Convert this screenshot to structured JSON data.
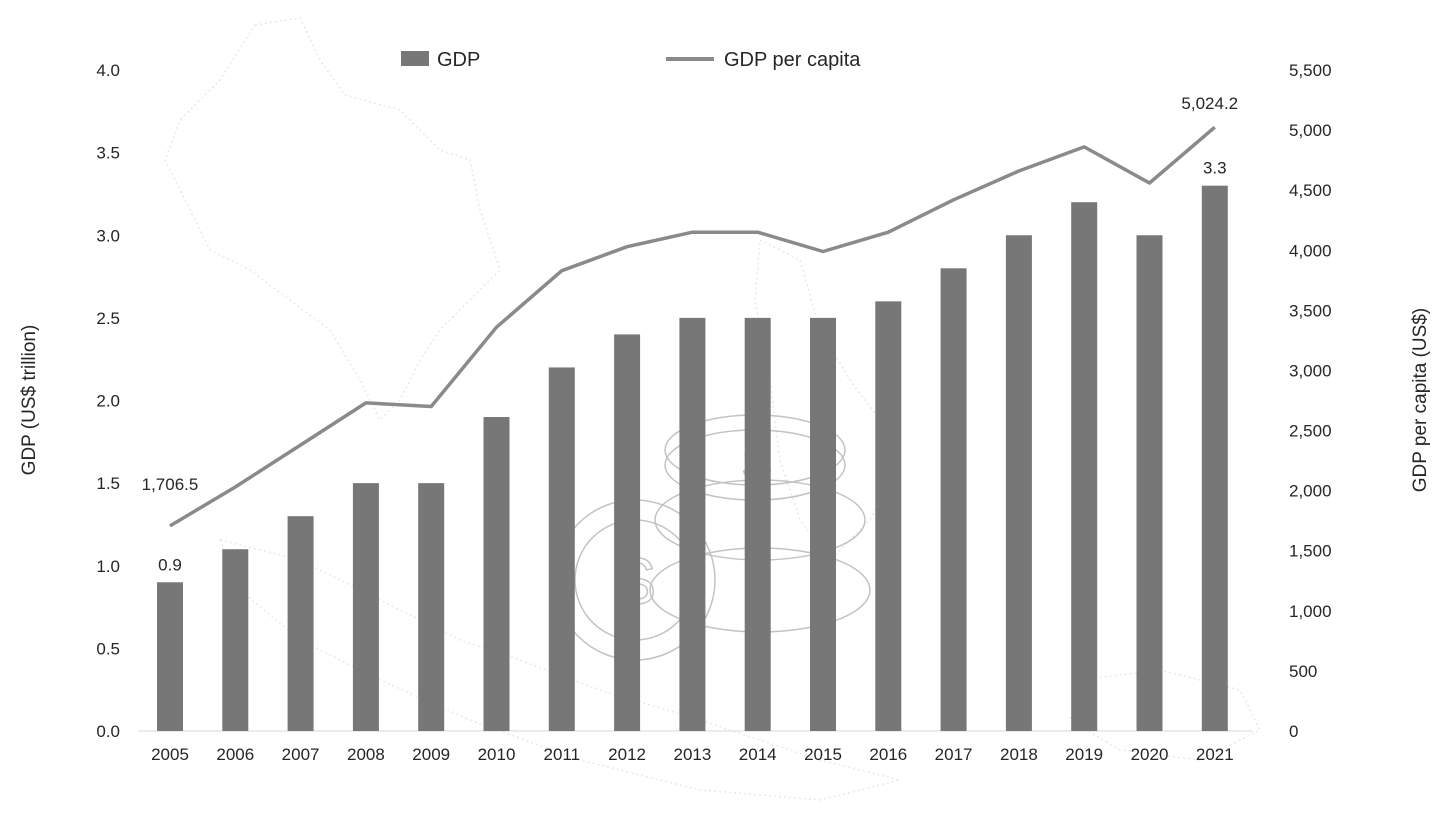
{
  "chart_data": {
    "type": "bar",
    "categories": [
      "2005",
      "2006",
      "2007",
      "2008",
      "2009",
      "2010",
      "2011",
      "2012",
      "2013",
      "2014",
      "2015",
      "2016",
      "2017",
      "2018",
      "2019",
      "2020",
      "2021"
    ],
    "series": [
      {
        "name": "GDP",
        "type": "bar",
        "axis": "left",
        "values": [
          0.9,
          1.1,
          1.3,
          1.5,
          1.5,
          1.9,
          2.2,
          2.4,
          2.5,
          2.5,
          2.5,
          2.6,
          2.8,
          3.0,
          3.2,
          3.0,
          3.3
        ],
        "color": "#777777"
      },
      {
        "name": "GDP per capita",
        "type": "line",
        "axis": "right",
        "values": [
          1706.5,
          2030,
          2380,
          2730,
          2700,
          3360,
          3830,
          4030,
          4150,
          4150,
          3990,
          4150,
          4420,
          4660,
          4860,
          4560,
          5024.2
        ],
        "color": "#8a8a8a"
      }
    ],
    "y_left": {
      "label": "GDP (US$ trillion)",
      "range": [
        0,
        4
      ],
      "ticks": [
        "0.0",
        "0.5",
        "1.0",
        "1.5",
        "2.0",
        "2.5",
        "3.0",
        "3.5",
        "4.0"
      ]
    },
    "y_right": {
      "label": "GDP per capita (US$)",
      "range": [
        0,
        5500
      ],
      "ticks": [
        "0",
        "500",
        "1,000",
        "1,500",
        "2,000",
        "2,500",
        "3,000",
        "3,500",
        "4,000",
        "4,500",
        "5,000",
        "5,500"
      ]
    },
    "data_labels": {
      "gdp_first": "0.9",
      "gdp_last": "3.3",
      "pc_first": "1,706.5",
      "pc_last": "5,024.2"
    },
    "legend": {
      "position": "top",
      "items": [
        "GDP",
        "GDP per capita"
      ]
    },
    "grid": false
  }
}
